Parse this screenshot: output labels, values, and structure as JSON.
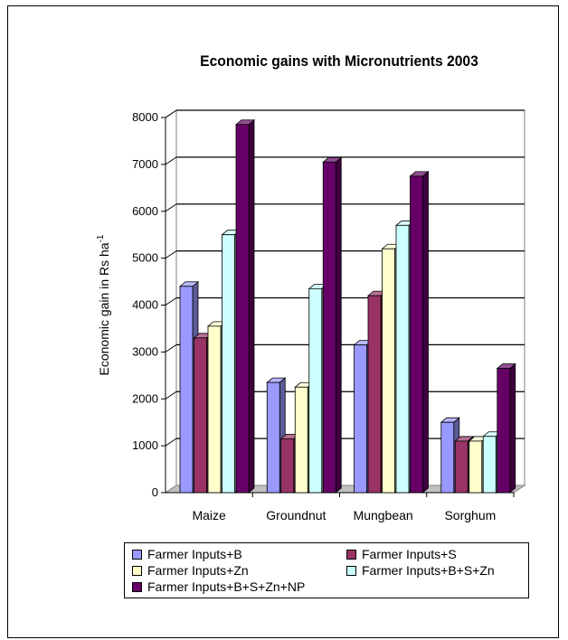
{
  "chart_data": {
    "type": "bar",
    "title": "Economic gains with Micronutrients 2003",
    "ylabel": "Economic gain in Rs ha",
    "ylabel_superscript": "-1",
    "xlabel": "",
    "ylim": [
      0,
      8000
    ],
    "yticks": [
      "0",
      "1000",
      "2000",
      "3000",
      "4000",
      "5000",
      "6000",
      "7000",
      "8000"
    ],
    "categories": [
      "Maize",
      "Groundnut",
      "Mungbean",
      "Sorghum"
    ],
    "series": [
      {
        "name": "Farmer Inputs+B",
        "color": "#9999ff",
        "values": [
          4400,
          2350,
          3150,
          1500
        ]
      },
      {
        "name": "Farmer Inputs+S",
        "color": "#993366",
        "values": [
          3300,
          1150,
          4200,
          1100
        ]
      },
      {
        "name": "Farmer Inputs+Zn",
        "color": "#ffffcc",
        "values": [
          3550,
          2250,
          5200,
          1100
        ]
      },
      {
        "name": "Farmer Inputs+B+S+Zn",
        "color": "#ccffff",
        "values": [
          5500,
          4350,
          5700,
          1200
        ]
      },
      {
        "name": "Farmer Inputs+B+S+Zn+NP",
        "color": "#660066",
        "values": [
          7850,
          7050,
          6750,
          2650
        ]
      }
    ],
    "grid": true,
    "legend_position": "bottom"
  }
}
